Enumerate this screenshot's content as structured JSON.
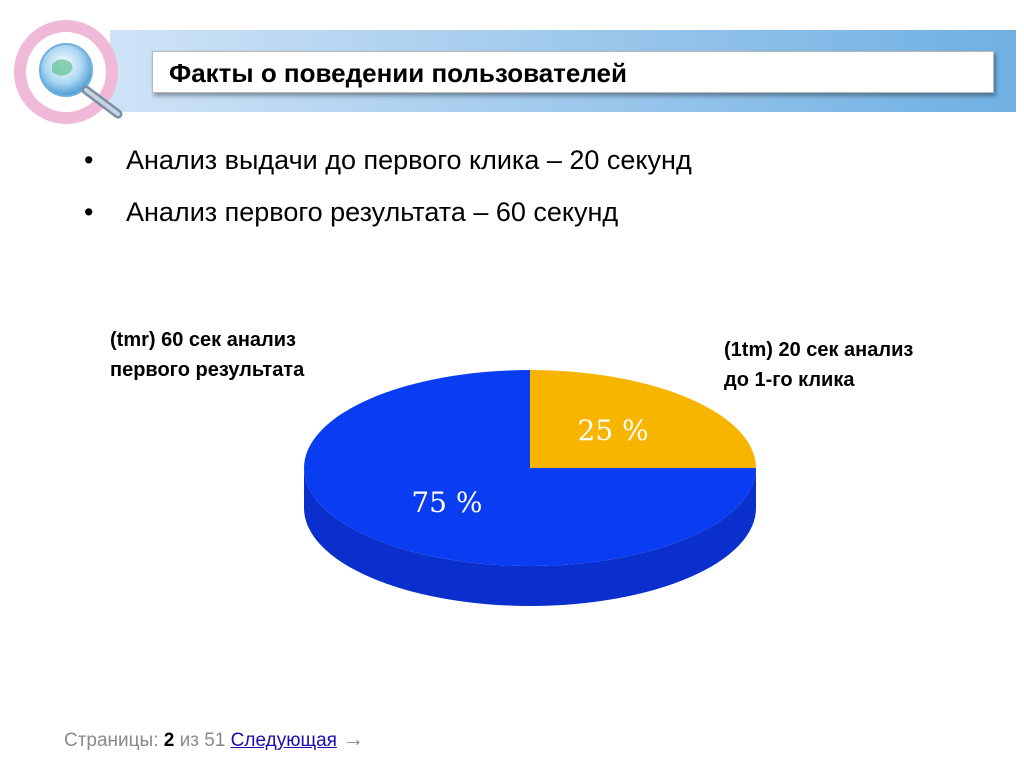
{
  "slide": {
    "title": "Факты о поведении пользователей",
    "bullets": [
      "Анализ выдачи до первого клика – 20 секунд",
      "Анализ первого результата – 60 секунд"
    ]
  },
  "annotations": {
    "left_line1": "(tmr) 60 сек анализ",
    "left_line2": "первого результата",
    "right_line1": "(1tm) 20 сек анализ",
    "right_line2": "до 1-го клика"
  },
  "chart_data": {
    "type": "pie",
    "categories": [
      "25 %",
      "75 %"
    ],
    "values": [
      25,
      75
    ],
    "colors": [
      "#f7b500",
      "#0a3cf2"
    ],
    "side_colors": [
      "#c08a00",
      "#0a2fcc"
    ],
    "style": "3d"
  },
  "footer": {
    "prefix": "Страницы:",
    "current": "2",
    "of_text": "из 51",
    "next_link": "Следующая",
    "arrow": "→"
  },
  "icons": {
    "logo": "magnifier-globe-icon",
    "bullet": "bullet-dot-icon",
    "next": "arrow-right-icon"
  }
}
